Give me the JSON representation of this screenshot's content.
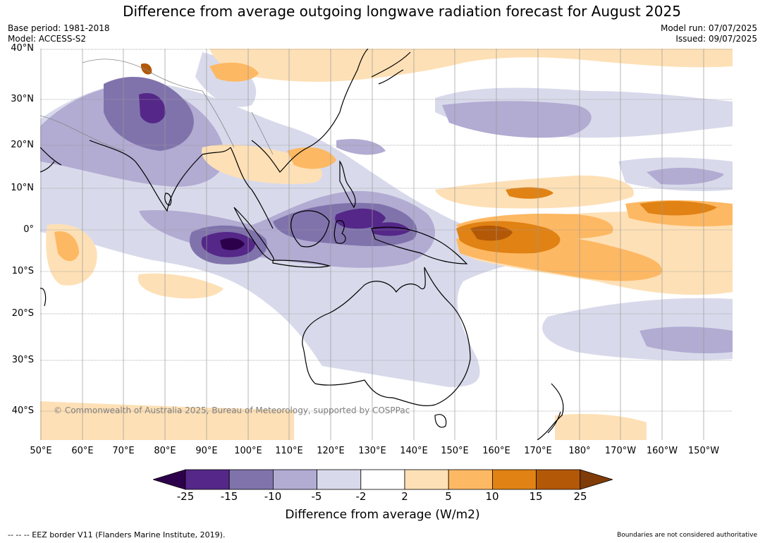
{
  "title": "Difference from average outgoing longwave radiation forecast for August 2025",
  "base_period": "Base period: 1981-2018",
  "model": "Model: ACCESS-S2",
  "model_run": "Model run: 07/07/2025",
  "issued": "Issued: 09/07/2025",
  "copyright": "© Commonwealth of Australia 2025, Bureau of Meteorology, supported by COSPPac",
  "eez_note": "--  --  -- EEZ border V11 (Flanders Marine Institute, 2019).",
  "boundary_note": "Boundaries are not considered authoritative",
  "map": {
    "lat_labels": [
      "40°N",
      "30°N",
      "20°N",
      "10°N",
      "0°",
      "10°S",
      "20°S",
      "30°S",
      "40°S"
    ],
    "lon_labels": [
      "50°E",
      "60°E",
      "70°E",
      "80°E",
      "90°E",
      "100°E",
      "110°E",
      "120°E",
      "130°E",
      "140°E",
      "150°E",
      "160°E",
      "170°E",
      "180°",
      "170°W",
      "160°W",
      "150°W"
    ]
  },
  "colorbar": {
    "title": "Difference from average (W/m2)",
    "tick_labels": [
      "-25",
      "-15",
      "-10",
      "-5",
      "-2",
      "2",
      "5",
      "10",
      "15",
      "25"
    ],
    "colors": [
      "#2d004b",
      "#542788",
      "#8073ac",
      "#b2abd2",
      "#d8daeb",
      "#ffffff",
      "#fee0b6",
      "#fdb863",
      "#e08214",
      "#b35806",
      "#7f3b08"
    ]
  }
}
